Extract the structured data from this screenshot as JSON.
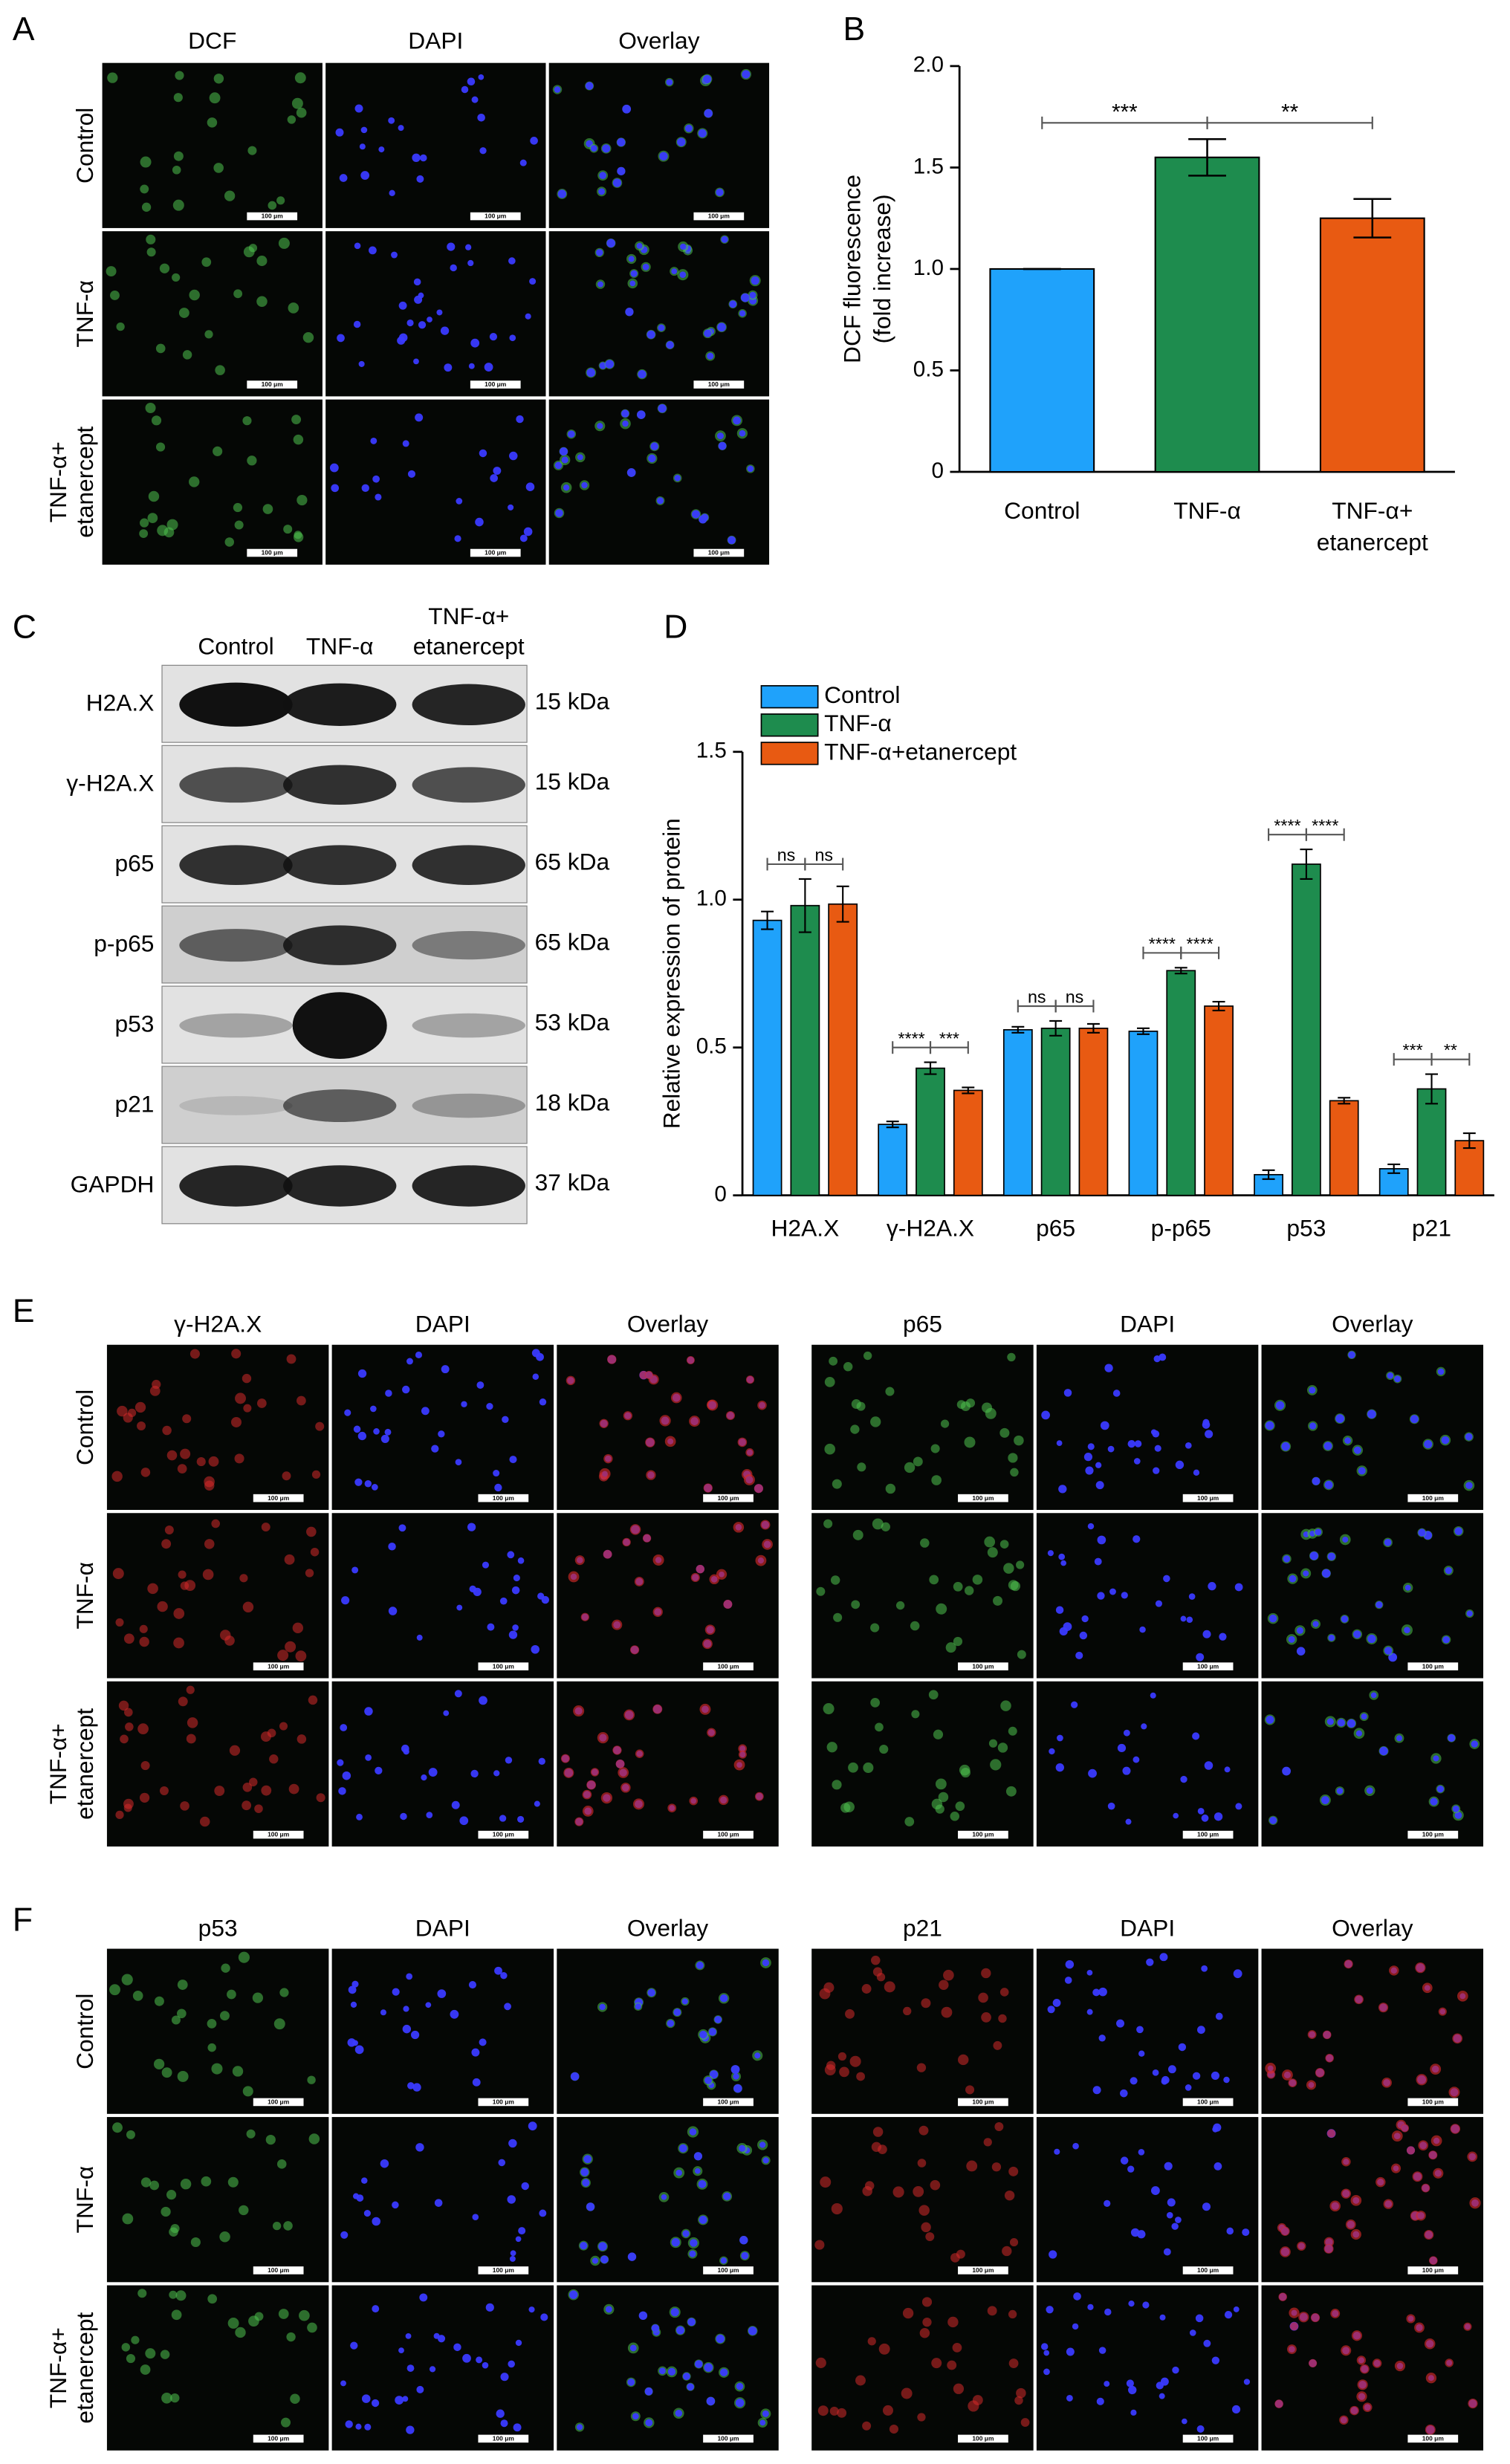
{
  "panel_labels": [
    "A",
    "B",
    "C",
    "D",
    "E",
    "F"
  ],
  "scale_bar": "100 μm",
  "panel_a": {
    "columns": [
      "DCF",
      "DAPI",
      "Overlay"
    ],
    "rows": [
      [
        "Control"
      ],
      [
        "TNF-α"
      ],
      [
        "TNF-α+",
        "etanercept"
      ]
    ]
  },
  "panel_c": {
    "columns": [
      [
        "Control"
      ],
      [
        "TNF-α"
      ],
      [
        "TNF-α+",
        "etanercept"
      ]
    ],
    "rows": [
      {
        "protein": "H2A.X",
        "size": "15 kDa"
      },
      {
        "protein": "γ-H2A.X",
        "size": "15 kDa"
      },
      {
        "protein": "p65",
        "size": "65 kDa"
      },
      {
        "protein": "p-p65",
        "size": "65 kDa"
      },
      {
        "protein": "p53",
        "size": "53 kDa"
      },
      {
        "protein": "p21",
        "size": "18 kDa"
      },
      {
        "protein": "GAPDH",
        "size": "37 kDa"
      }
    ]
  },
  "panel_e": {
    "groups": [
      [
        "γ-H2A.X",
        "DAPI",
        "Overlay"
      ],
      [
        "p65",
        "DAPI",
        "Overlay"
      ]
    ],
    "rows": [
      [
        "Control"
      ],
      [
        "TNF-α"
      ],
      [
        "TNF-α+",
        "etanercept"
      ]
    ]
  },
  "panel_f": {
    "groups": [
      [
        "p53",
        "DAPI",
        "Overlay"
      ],
      [
        "p21",
        "DAPI",
        "Overlay"
      ]
    ],
    "rows": [
      [
        "Control"
      ],
      [
        "TNF-α"
      ],
      [
        "TNF-α+",
        "etanercept"
      ]
    ]
  },
  "chart_data": [
    {
      "type": "bar",
      "ylabel": [
        "DCF fluorescence",
        "(fold increase)"
      ],
      "categories": [
        "Control",
        "TNF-α",
        "TNF-α+\netanercept"
      ],
      "values": [
        1.0,
        1.55,
        1.25
      ],
      "errors": [
        0,
        0.09,
        0.095
      ],
      "colors": [
        "#1fa2fb",
        "#1e8c4e",
        "#e85a12"
      ],
      "ylim": [
        0,
        2
      ],
      "yticks": [
        0,
        0.5,
        {
          "value": 1,
          "label": "1.0"
        },
        1.5,
        {
          "value": 2,
          "label": "2.0"
        }
      ],
      "annotations": [
        "***",
        "**"
      ]
    },
    {
      "type": "grouped_bar",
      "ylabel": "Relative expression of protein",
      "categories": [
        "H2A.X",
        "γ-H2A.X",
        "p65",
        "p-p65",
        "p53",
        "p21"
      ],
      "series": [
        {
          "name": "Control",
          "color": "#1fa2fb",
          "values": [
            0.93,
            0.24,
            0.56,
            0.555,
            0.07,
            0.09
          ],
          "errors": [
            0.03,
            0.01,
            0.01,
            0.01,
            0.015,
            0.015
          ]
        },
        {
          "name": "TNF-α",
          "color": "#1e8c4e",
          "values": [
            0.98,
            0.43,
            0.565,
            0.76,
            1.12,
            0.36
          ],
          "errors": [
            0.09,
            0.02,
            0.025,
            0.01,
            0.05,
            0.05
          ]
        },
        {
          "name": "TNF-α+etanercept",
          "color": "#e85a12",
          "values": [
            0.985,
            0.355,
            0.565,
            0.64,
            0.32,
            0.185
          ],
          "errors": [
            0.06,
            0.01,
            0.015,
            0.015,
            0.01,
            0.025
          ]
        }
      ],
      "ylim": [
        0,
        1.5
      ],
      "yticks": [
        0,
        0.5,
        {
          "value": 1,
          "label": "1.0"
        },
        1.5
      ],
      "legend": "top-left",
      "annotations": [
        [
          "ns",
          "ns"
        ],
        [
          "****",
          "***"
        ],
        [
          "ns",
          "ns"
        ],
        [
          "****",
          "****"
        ],
        [
          "****",
          "****"
        ],
        [
          "***",
          "**"
        ]
      ]
    }
  ]
}
